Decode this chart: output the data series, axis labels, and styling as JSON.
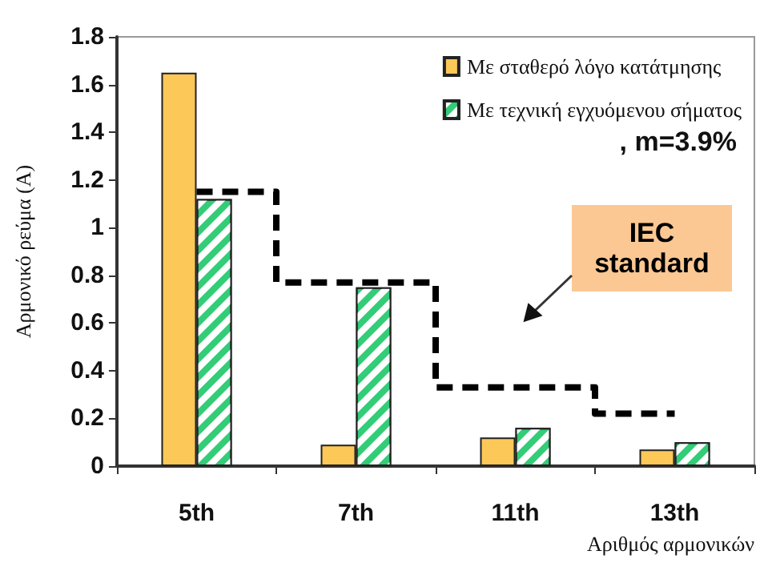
{
  "chart_data": {
    "type": "bar",
    "xlabel": "Αριθμός αρμονικών",
    "ylabel": "Αρμονικό ρεύμα (A)",
    "categories": [
      "5th",
      "7th",
      "11th",
      "13th"
    ],
    "series": [
      {
        "name": "Με σταθερό λόγο κατάτμησης",
        "color": "#fcc858",
        "values": [
          1.65,
          0.09,
          0.12,
          0.07
        ]
      },
      {
        "name": "Με τεχνική εγχυόμενου σήματος",
        "color": "#33cc77",
        "values": [
          1.12,
          0.75,
          0.16,
          0.1
        ]
      },
      {
        "name": "IEC standard",
        "type": "step",
        "color": "#000000",
        "line_style": "dashed",
        "marker": "none",
        "values": [
          1.15,
          0.77,
          0.33,
          0.22
        ]
      }
    ],
    "ylim": [
      0,
      1.8
    ],
    "yticks": [
      0,
      0.2,
      0.4,
      0.6,
      0.8,
      1,
      1.2,
      1.4,
      1.6,
      1.8
    ],
    "grid": false,
    "legend": "top right",
    "annotations": [
      ", m=3.9%"
    ]
  }
}
